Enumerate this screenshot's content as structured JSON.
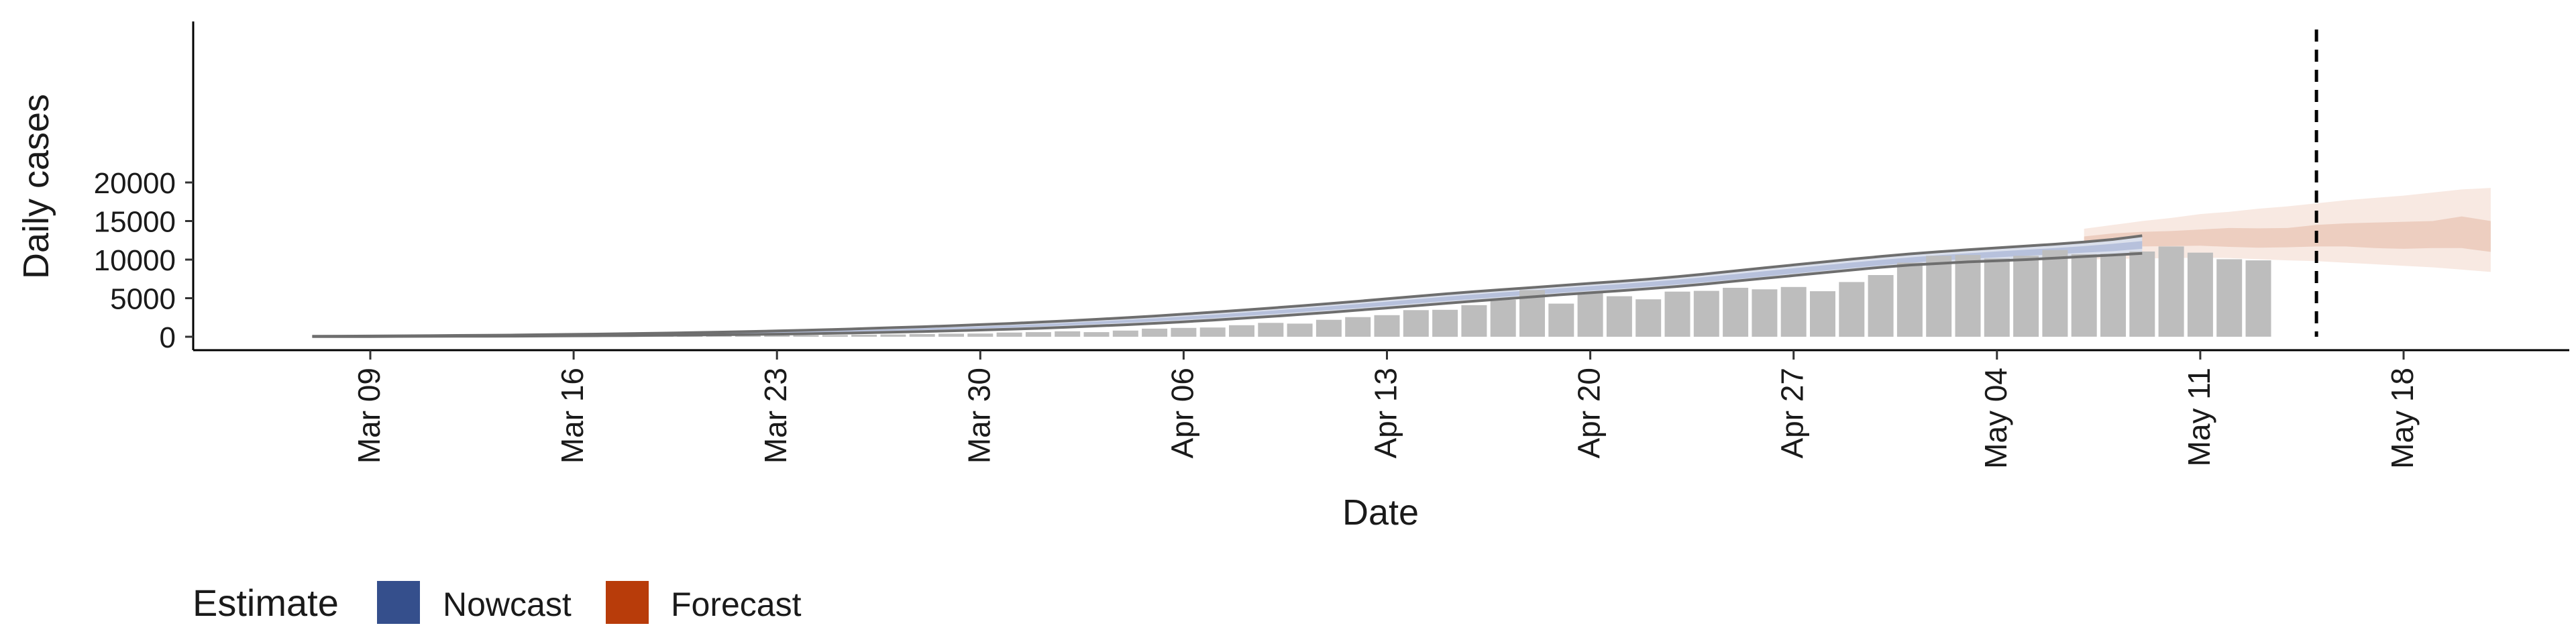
{
  "chart_data": {
    "type": "bar",
    "xlabel": "Date",
    "ylabel": "Daily cases",
    "ylim": [
      -1000,
      20500
    ],
    "yticks": [
      0,
      5000,
      10000,
      15000,
      20000
    ],
    "xticks": [
      "Mar 09",
      "Mar 16",
      "Mar 23",
      "Mar 30",
      "Apr 06",
      "Apr 13",
      "Apr 20",
      "Apr 27",
      "May 04",
      "May 11",
      "May 18"
    ],
    "reference_line_date": "May 15",
    "grid": false,
    "legend": {
      "position": "bottom-left",
      "title": "Estimate",
      "entries": [
        {
          "label": "Nowcast",
          "color": "#354f8c"
        },
        {
          "label": "Forecast",
          "color": "#b83c0a"
        }
      ]
    },
    "bar_color": "#bdbdbd",
    "observed": {
      "start_date": "Mar 10",
      "values": [
        10,
        15,
        20,
        25,
        35,
        40,
        55,
        60,
        70,
        80,
        100,
        120,
        150,
        180,
        200,
        230,
        260,
        300,
        350,
        400,
        420,
        550,
        600,
        700,
        600,
        800,
        1050,
        1150,
        1200,
        1500,
        1800,
        1700,
        2200,
        2550,
        2800,
        3450,
        3500,
        4100,
        4800,
        6050,
        4300,
        5650,
        5250,
        4850,
        5850,
        5950,
        6350,
        6150,
        6450,
        5900,
        7100,
        8000,
        9600,
        10500,
        10600,
        10150,
        10500,
        11250,
        10700,
        10750,
        11050,
        11700,
        10900,
        10050,
        9900
      ]
    },
    "nowcast": {
      "start_date": "Mar 07",
      "lower90": [
        20,
        25,
        30,
        40,
        50,
        60,
        70,
        80,
        100,
        120,
        140,
        160,
        190,
        220,
        260,
        300,
        340,
        390,
        450,
        520,
        600,
        680,
        770,
        870,
        980,
        1100,
        1240,
        1400,
        1560,
        1740,
        1940,
        2160,
        2390,
        2630,
        2890,
        3160,
        3440,
        3730,
        4030,
        4330,
        4620,
        4900,
        5170,
        5450,
        5700,
        5960,
        6230,
        6520,
        6850,
        7220,
        7570,
        7930,
        8300,
        8650,
        9000,
        9300,
        9500,
        9700,
        9850,
        10000,
        10200,
        10400,
        10600,
        10800
      ],
      "lower50": [
        30,
        40,
        50,
        60,
        75,
        90,
        110,
        130,
        150,
        180,
        210,
        240,
        280,
        320,
        370,
        420,
        480,
        550,
        620,
        700,
        780,
        870,
        970,
        1080,
        1200,
        1330,
        1480,
        1640,
        1820,
        2000,
        2210,
        2430,
        2670,
        2920,
        3180,
        3450,
        3730,
        4020,
        4320,
        4620,
        4900,
        5180,
        5450,
        5720,
        5980,
        6230,
        6500,
        6780,
        7100,
        7450,
        7820,
        8200,
        8560,
        8920,
        9260,
        9580,
        9850,
        10100,
        10300,
        10500,
        10700,
        10900,
        11100,
        11400
      ],
      "upper50": [
        45,
        55,
        70,
        85,
        105,
        125,
        150,
        175,
        205,
        240,
        280,
        320,
        370,
        420,
        480,
        550,
        620,
        700,
        790,
        880,
        980,
        1090,
        1200,
        1330,
        1470,
        1620,
        1790,
        1970,
        2170,
        2380,
        2610,
        2850,
        3110,
        3380,
        3660,
        3950,
        4240,
        4550,
        4870,
        5180,
        5480,
        5760,
        6020,
        6300,
        6560,
        6820,
        7100,
        7400,
        7750,
        8120,
        8500,
        8880,
        9250,
        9620,
        9960,
        10290,
        10570,
        10820,
        11050,
        11280,
        11500,
        11750,
        12050,
        12400
      ],
      "upper90": [
        70,
        80,
        100,
        120,
        140,
        170,
        200,
        230,
        270,
        310,
        360,
        410,
        470,
        530,
        600,
        680,
        760,
        850,
        950,
        1060,
        1180,
        1300,
        1430,
        1570,
        1720,
        1890,
        2070,
        2260,
        2470,
        2690,
        2930,
        3180,
        3440,
        3720,
        4000,
        4300,
        4600,
        4920,
        5240,
        5560,
        5850,
        6120,
        6380,
        6650,
        6920,
        7180,
        7470,
        7790,
        8150,
        8540,
        8930,
        9310,
        9690,
        10060,
        10410,
        10740,
        11020,
        11280,
        11520,
        11760,
        12000,
        12280,
        12620,
        13100
      ]
    },
    "forecast": {
      "start_date": "May 07",
      "lower90": [
        10000,
        10100,
        10150,
        10200,
        10250,
        10200,
        10050,
        9900,
        9800,
        9600,
        9400,
        9200,
        9000,
        8700,
        8400
      ],
      "lower50": [
        11900,
        11800,
        11700,
        11750,
        11800,
        11650,
        11550,
        11600,
        11700,
        11700,
        11500,
        11400,
        11500,
        11500,
        11000
      ],
      "upper50": [
        13000,
        13400,
        13600,
        13700,
        13900,
        14100,
        14050,
        14100,
        14500,
        14700,
        14800,
        14900,
        15000,
        15600,
        15000
      ],
      "upper90": [
        14000,
        14500,
        15000,
        15400,
        15900,
        16200,
        16600,
        16900,
        17300,
        17700,
        18000,
        18300,
        18700,
        19100,
        19300
      ]
    }
  }
}
